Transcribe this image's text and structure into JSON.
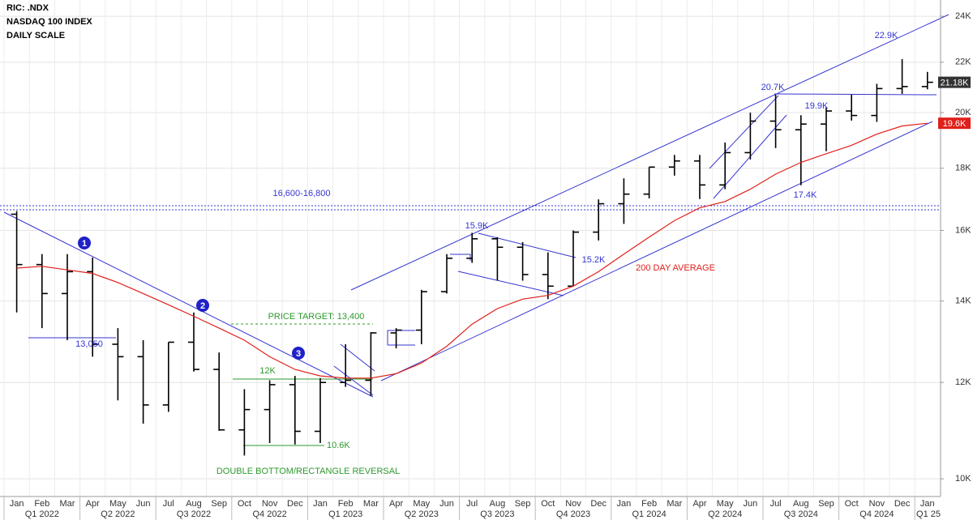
{
  "header": [
    "RIC: .NDX",
    "NASDAQ 100 INDEX",
    "DAILY SCALE"
  ],
  "chart_data": {
    "type": "ohlc",
    "categories": [
      "Jan",
      "Feb",
      "Mar",
      "Apr",
      "May",
      "Jun",
      "Jul",
      "Aug",
      "Sep",
      "Oct",
      "Nov",
      "Dec",
      "Jan",
      "Feb",
      "Mar",
      "Apr",
      "May",
      "Jun",
      "Jul",
      "Aug",
      "Sep",
      "Oct",
      "Nov",
      "Dec",
      "Jan",
      "Feb",
      "Mar",
      "Apr",
      "May",
      "Jun",
      "Jul",
      "Aug",
      "Sep",
      "Oct",
      "Nov",
      "Dec",
      "Jan"
    ],
    "quarters": [
      "Q1 2022",
      "Q2 2022",
      "Q3 2022",
      "Q4 2022",
      "Q1 2023",
      "Q2 2023",
      "Q3 2023",
      "Q4 2023",
      "Q1 2024",
      "Q2 2024",
      "Q3 2024",
      "Q4 2024",
      "Q1 25"
    ],
    "log_scale": true,
    "grid": true,
    "ylim": [
      9670,
      24750
    ],
    "yticks": [
      {
        "value": 10000,
        "label": "10K"
      },
      {
        "value": 12000,
        "label": "12K"
      },
      {
        "value": 14000,
        "label": "14K"
      },
      {
        "value": 16000,
        "label": "16K"
      },
      {
        "value": 18000,
        "label": "18K"
      },
      {
        "value": 20000,
        "label": "20K"
      },
      {
        "value": 22000,
        "label": "22K"
      },
      {
        "value": 24000,
        "label": "24K"
      }
    ],
    "series": [
      {
        "color": "#000000",
        "open": [
          16500,
          15000,
          14200,
          14800,
          12900,
          12600,
          11500,
          12950,
          12300,
          10970,
          11400,
          11950,
          10940,
          12000,
          12050,
          13180,
          13250,
          14250,
          15180,
          15750,
          15500,
          14720,
          14400,
          15950,
          16830,
          17140,
          18040,
          18250,
          17440,
          18540,
          19680,
          19360,
          19570,
          20060,
          19890,
          20930,
          21010
        ],
        "high": [
          16600,
          15300,
          15300,
          15200,
          13300,
          13000,
          12950,
          13700,
          12700,
          11850,
          12050,
          12150,
          12100,
          12900,
          13200,
          13300,
          14300,
          15300,
          15930,
          15800,
          15650,
          15350,
          16000,
          16970,
          17660,
          18040,
          18460,
          18460,
          18900,
          20000,
          20690,
          19900,
          20200,
          20690,
          21120,
          22130,
          21600
        ],
        "low": [
          13700,
          13300,
          13000,
          12600,
          11600,
          11100,
          11350,
          12250,
          10950,
          10450,
          10700,
          10670,
          10700,
          11900,
          11700,
          12800,
          12900,
          14200,
          15050,
          14550,
          14550,
          14050,
          14400,
          15700,
          16200,
          17000,
          17750,
          16980,
          17300,
          18300,
          18700,
          17430,
          18590,
          19700,
          19650,
          20720,
          20900
        ],
        "close": [
          15000,
          14200,
          14800,
          12900,
          12600,
          11500,
          12950,
          12300,
          10970,
          11400,
          11950,
          10940,
          12000,
          12050,
          13180,
          13250,
          14250,
          15180,
          15750,
          15500,
          14720,
          14400,
          15950,
          16830,
          17140,
          18040,
          18250,
          17440,
          18540,
          19680,
          19360,
          19570,
          20060,
          19890,
          20930,
          21010,
          21180
        ],
        "last_label": "21.18K"
      },
      {
        "name": "200 DAY AVERAGE",
        "color": "#e0201b",
        "values": [
          14900,
          14950,
          14850,
          14750,
          14500,
          14200,
          13900,
          13600,
          13300,
          13000,
          12600,
          12300,
          12150,
          12100,
          12100,
          12200,
          12450,
          12850,
          13400,
          13800,
          14050,
          14150,
          14400,
          14800,
          15300,
          15800,
          16300,
          16700,
          16900,
          17300,
          17800,
          18200,
          18500,
          18800,
          19200,
          19500,
          19600
        ],
        "last_label": "19.6K"
      }
    ],
    "annotations": [
      "16,600-16,800",
      "13,050",
      "PRICE TARGET: 13,400",
      "12K",
      "10.6K",
      "DOUBLE BOTTOM/RECTANGLE REVERSAL",
      "15.9K",
      "15.2K",
      "20.7K",
      "19.9K",
      "17.4K",
      "22.9K",
      "1",
      "2",
      "3"
    ]
  }
}
